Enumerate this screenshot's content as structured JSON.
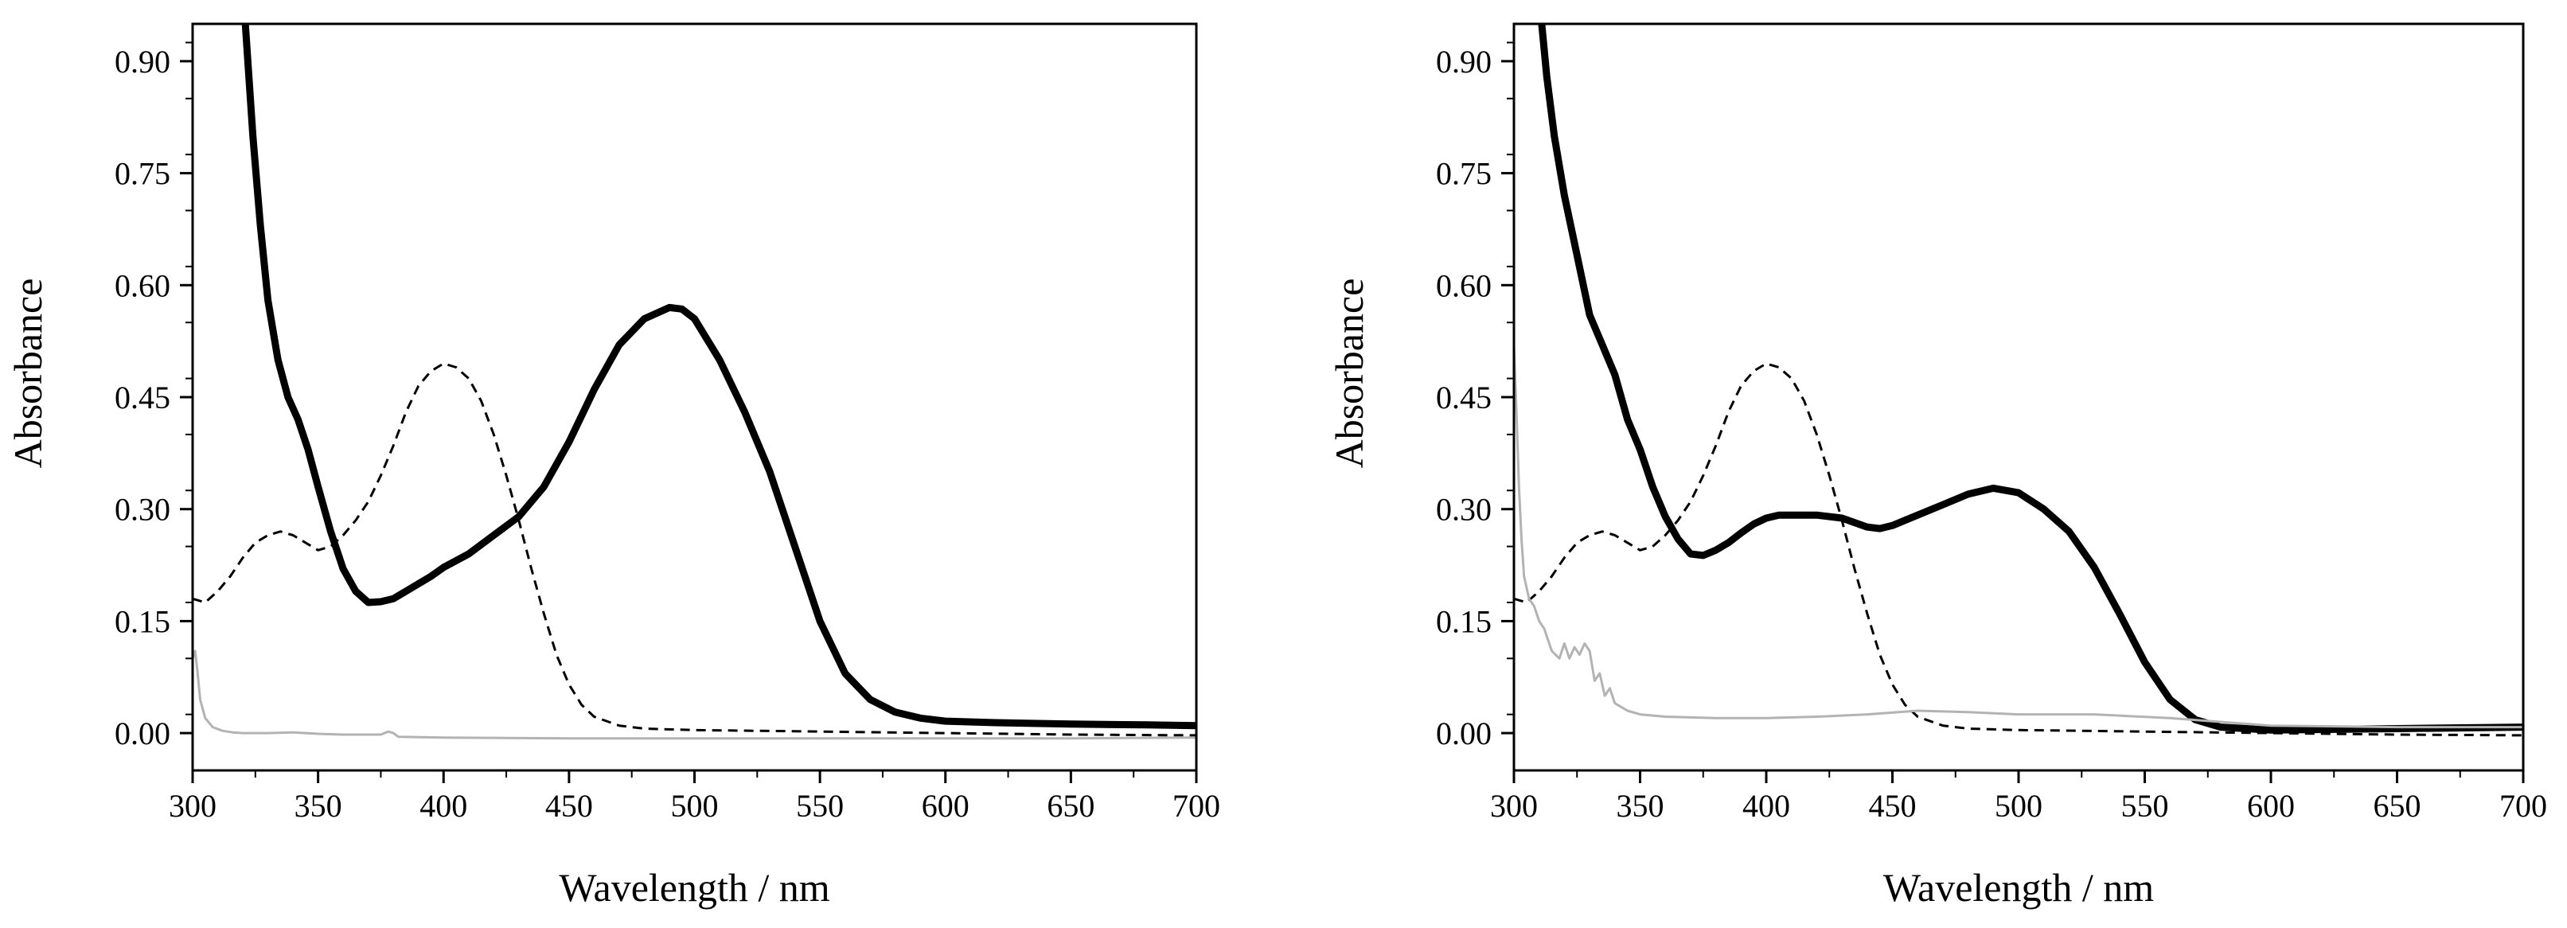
{
  "chart_data": [
    {
      "type": "line",
      "title": "",
      "xlabel": "Wavelength / nm",
      "ylabel": "Absorbance",
      "xlim": [
        300,
        700
      ],
      "ylim": [
        -0.05,
        0.95
      ],
      "xticks": [
        300,
        350,
        400,
        450,
        500,
        550,
        600,
        650,
        700
      ],
      "xtick_labels": [
        "300",
        "350",
        "400",
        "450",
        "500",
        "550",
        "600",
        "650",
        "700"
      ],
      "yticks": [
        0.0,
        0.15,
        0.3,
        0.45,
        0.6,
        0.75,
        0.9
      ],
      "ytick_labels": [
        "0.00",
        "0.15",
        "0.30",
        "0.45",
        "0.60",
        "0.75",
        "0.90"
      ],
      "grid": false,
      "series": [
        {
          "name": "thick solid",
          "style": "solid-thick",
          "color": "#000000",
          "x": [
            321,
            324,
            327,
            330,
            334,
            338,
            342,
            346,
            350,
            355,
            360,
            365,
            370,
            375,
            380,
            385,
            390,
            395,
            400,
            410,
            420,
            430,
            440,
            450,
            460,
            470,
            480,
            490,
            495,
            500,
            510,
            520,
            530,
            540,
            550,
            560,
            570,
            580,
            590,
            600,
            620,
            650,
            680,
            700
          ],
          "y": [
            0.95,
            0.8,
            0.68,
            0.58,
            0.5,
            0.45,
            0.42,
            0.38,
            0.33,
            0.27,
            0.22,
            0.19,
            0.175,
            0.176,
            0.18,
            0.19,
            0.2,
            0.21,
            0.222,
            0.24,
            0.265,
            0.29,
            0.33,
            0.39,
            0.46,
            0.52,
            0.555,
            0.57,
            0.568,
            0.555,
            0.5,
            0.43,
            0.35,
            0.25,
            0.15,
            0.08,
            0.045,
            0.028,
            0.02,
            0.016,
            0.014,
            0.012,
            0.011,
            0.01
          ]
        },
        {
          "name": "dashed",
          "style": "dashed",
          "color": "#000000",
          "x": [
            300,
            305,
            310,
            315,
            320,
            325,
            330,
            335,
            340,
            345,
            350,
            355,
            360,
            365,
            370,
            375,
            380,
            385,
            390,
            395,
            400,
            405,
            410,
            415,
            420,
            425,
            430,
            435,
            440,
            445,
            450,
            455,
            460,
            470,
            480,
            500,
            550,
            600,
            650,
            700
          ],
          "y": [
            0.18,
            0.175,
            0.19,
            0.21,
            0.235,
            0.255,
            0.265,
            0.27,
            0.265,
            0.255,
            0.245,
            0.25,
            0.265,
            0.285,
            0.31,
            0.345,
            0.385,
            0.43,
            0.465,
            0.485,
            0.495,
            0.49,
            0.475,
            0.445,
            0.4,
            0.345,
            0.285,
            0.22,
            0.16,
            0.105,
            0.065,
            0.038,
            0.022,
            0.01,
            0.006,
            0.004,
            0.002,
            0.0,
            -0.002,
            -0.003
          ]
        },
        {
          "name": "thin grey",
          "style": "solid-thin",
          "color": "#b3b3b3",
          "x": [
            300,
            301,
            302,
            303,
            305,
            308,
            312,
            316,
            320,
            330,
            340,
            350,
            360,
            375,
            378,
            380,
            382,
            400,
            450,
            500,
            550,
            600,
            650,
            700
          ],
          "y": [
            0.1,
            0.11,
            0.08,
            0.045,
            0.02,
            0.008,
            0.003,
            0.001,
            0.0,
            0.0,
            0.001,
            -0.001,
            -0.002,
            -0.002,
            0.002,
            0.0,
            -0.005,
            -0.006,
            -0.007,
            -0.007,
            -0.007,
            -0.007,
            -0.007,
            -0.006
          ]
        }
      ]
    },
    {
      "type": "line",
      "title": "",
      "xlabel": "Wavelength / nm",
      "ylabel": "Absorbance",
      "xlim": [
        300,
        700
      ],
      "ylim": [
        -0.05,
        0.95
      ],
      "xticks": [
        300,
        350,
        400,
        450,
        500,
        550,
        600,
        650,
        700
      ],
      "xtick_labels": [
        "300",
        "350",
        "400",
        "450",
        "500",
        "550",
        "600",
        "650",
        "700"
      ],
      "yticks": [
        0.0,
        0.15,
        0.3,
        0.45,
        0.6,
        0.75,
        0.9
      ],
      "ytick_labels": [
        "0.00",
        "0.15",
        "0.30",
        "0.45",
        "0.60",
        "0.75",
        "0.90"
      ],
      "grid": false,
      "series": [
        {
          "name": "thick solid",
          "style": "solid-thick",
          "color": "#000000",
          "x": [
            311,
            313,
            316,
            320,
            325,
            330,
            335,
            340,
            345,
            350,
            355,
            360,
            365,
            370,
            375,
            380,
            385,
            390,
            395,
            400,
            405,
            410,
            420,
            430,
            440,
            445,
            450,
            460,
            470,
            480,
            490,
            500,
            510,
            520,
            530,
            540,
            550,
            560,
            570,
            580,
            600,
            650,
            700
          ],
          "y": [
            0.95,
            0.88,
            0.8,
            0.72,
            0.64,
            0.56,
            0.52,
            0.48,
            0.42,
            0.38,
            0.33,
            0.29,
            0.26,
            0.24,
            0.238,
            0.245,
            0.255,
            0.268,
            0.28,
            0.288,
            0.292,
            0.292,
            0.292,
            0.288,
            0.276,
            0.274,
            0.278,
            0.292,
            0.306,
            0.32,
            0.328,
            0.322,
            0.3,
            0.27,
            0.222,
            0.16,
            0.095,
            0.045,
            0.018,
            0.008,
            0.004,
            0.006,
            0.008
          ]
        },
        {
          "name": "dashed",
          "style": "dashed",
          "color": "#000000",
          "x": [
            300,
            305,
            310,
            315,
            320,
            325,
            330,
            335,
            340,
            345,
            350,
            355,
            360,
            365,
            370,
            375,
            380,
            385,
            390,
            395,
            400,
            405,
            410,
            415,
            420,
            425,
            430,
            435,
            440,
            445,
            450,
            455,
            460,
            470,
            480,
            500,
            550,
            600,
            650,
            700
          ],
          "y": [
            0.18,
            0.175,
            0.19,
            0.21,
            0.235,
            0.255,
            0.265,
            0.27,
            0.265,
            0.255,
            0.245,
            0.25,
            0.265,
            0.285,
            0.31,
            0.345,
            0.385,
            0.43,
            0.465,
            0.485,
            0.495,
            0.49,
            0.475,
            0.445,
            0.4,
            0.345,
            0.285,
            0.22,
            0.16,
            0.105,
            0.065,
            0.038,
            0.022,
            0.01,
            0.006,
            0.004,
            0.002,
            0.0,
            -0.002,
            -0.003
          ]
        },
        {
          "name": "thin grey",
          "style": "solid-thin",
          "color": "#b3b3b3",
          "x": [
            300,
            301,
            302,
            303,
            304,
            306,
            308,
            310,
            312,
            315,
            318,
            320,
            322,
            324,
            326,
            328,
            330,
            332,
            334,
            336,
            338,
            340,
            345,
            350,
            360,
            380,
            400,
            420,
            440,
            460,
            480,
            500,
            530,
            560,
            580,
            600,
            650,
            700
          ],
          "y": [
            0.52,
            0.43,
            0.33,
            0.26,
            0.21,
            0.18,
            0.17,
            0.15,
            0.14,
            0.11,
            0.1,
            0.12,
            0.1,
            0.115,
            0.105,
            0.12,
            0.11,
            0.07,
            0.08,
            0.05,
            0.06,
            0.04,
            0.03,
            0.025,
            0.022,
            0.02,
            0.02,
            0.022,
            0.025,
            0.03,
            0.028,
            0.025,
            0.025,
            0.02,
            0.015,
            0.01,
            0.008,
            0.008
          ]
        }
      ]
    }
  ]
}
